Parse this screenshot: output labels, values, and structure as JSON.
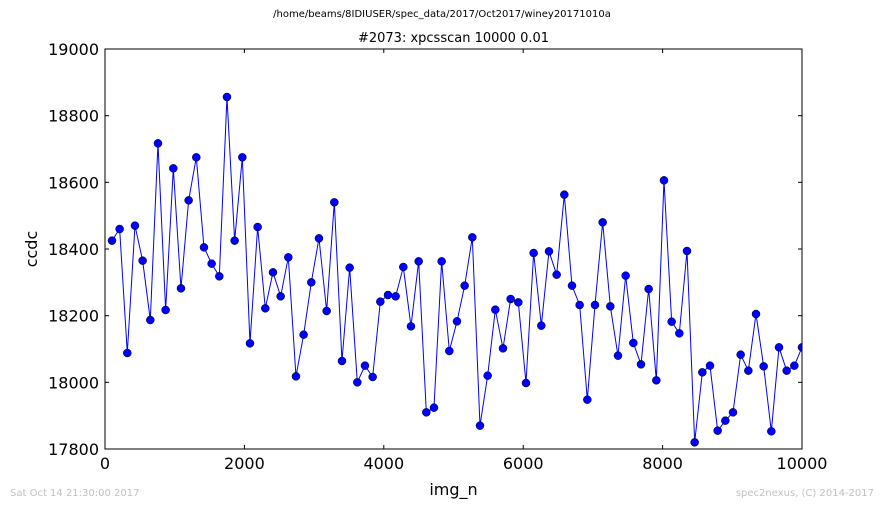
{
  "header": {
    "suptitle": "/home/beams/8IDIUSER/spec_data/2017/Oct2017/winey20171010a"
  },
  "footer": {
    "left": "Sat Oct 14 21:30:00 2017",
    "right": "spec2nexus, (C) 2014-2017"
  },
  "colors": {
    "line": "#0000ff",
    "marker": "#0000ff",
    "footer_text": "#c0c0c0"
  },
  "chart_data": {
    "type": "line",
    "title": "#2073: xpcsscan 10000 0.01",
    "xlabel": "img_n",
    "ylabel": "ccdc",
    "xlim": [
      0,
      10000
    ],
    "ylim": [
      17800,
      19000
    ],
    "xticks": [
      0,
      2000,
      4000,
      6000,
      8000,
      10000
    ],
    "yticks": [
      17800,
      18000,
      18200,
      18400,
      18600,
      18800,
      19000
    ],
    "xtick_labels": [
      "0",
      "2000",
      "4000",
      "6000",
      "8000",
      "10000"
    ],
    "ytick_labels": [
      "17800",
      "18000",
      "18200",
      "18400",
      "18600",
      "18800",
      "19000"
    ],
    "grid": false,
    "markers": "circle",
    "series": [
      {
        "x": [
          100,
          210,
          320,
          430,
          540,
          650,
          760,
          870,
          980,
          1090,
          1200,
          1310,
          1420,
          1530,
          1640,
          1750,
          1860,
          1970,
          2080,
          2190,
          2300,
          2410,
          2520,
          2630,
          2740,
          2850,
          2960,
          3070,
          3180,
          3290,
          3400,
          3510,
          3620,
          3730,
          3840,
          3950,
          4060,
          4170,
          4280,
          4390,
          4500,
          4610,
          4720,
          4830,
          4940,
          5050,
          5160,
          5270,
          5380,
          5490,
          5600,
          5710,
          5820,
          5930,
          6040,
          6150,
          6260,
          6370,
          6480,
          6590,
          6700,
          6810,
          6920,
          7030,
          7140,
          7250,
          7360,
          7470,
          7580,
          7690,
          7800,
          7910,
          8020,
          8130,
          8240,
          8350,
          8460,
          8570,
          8680,
          8790,
          8900,
          9010,
          9120,
          9230,
          9340,
          9450,
          9560,
          9670,
          9780,
          9890,
          10000
        ],
        "y": [
          18425,
          18460,
          18088,
          18470,
          18365,
          18187,
          18717,
          18217,
          18642,
          18282,
          18546,
          18675,
          18405,
          18356,
          18318,
          18856,
          18425,
          18675,
          18117,
          18466,
          18222,
          18330,
          18258,
          18375,
          18018,
          18143,
          18300,
          18432,
          18214,
          18540,
          18064,
          18344,
          18000,
          18050,
          18016,
          18242,
          18262,
          18258,
          18346,
          18168,
          18363,
          17910,
          17924,
          18363,
          18094,
          18183,
          18290,
          18435,
          17870,
          18020,
          18218,
          18102,
          18250,
          18240,
          17998,
          18388,
          18170,
          18393,
          18323,
          18563,
          18290,
          18232,
          17948,
          18232,
          18480,
          18228,
          18080,
          18320,
          18118,
          18054,
          18280,
          18006,
          18606,
          18182,
          18147,
          18394,
          17820,
          18030,
          18050,
          17855,
          17885,
          17910,
          18083,
          18035,
          18205,
          18048,
          17853,
          18105,
          18035,
          18050,
          18105
        ]
      }
    ]
  }
}
